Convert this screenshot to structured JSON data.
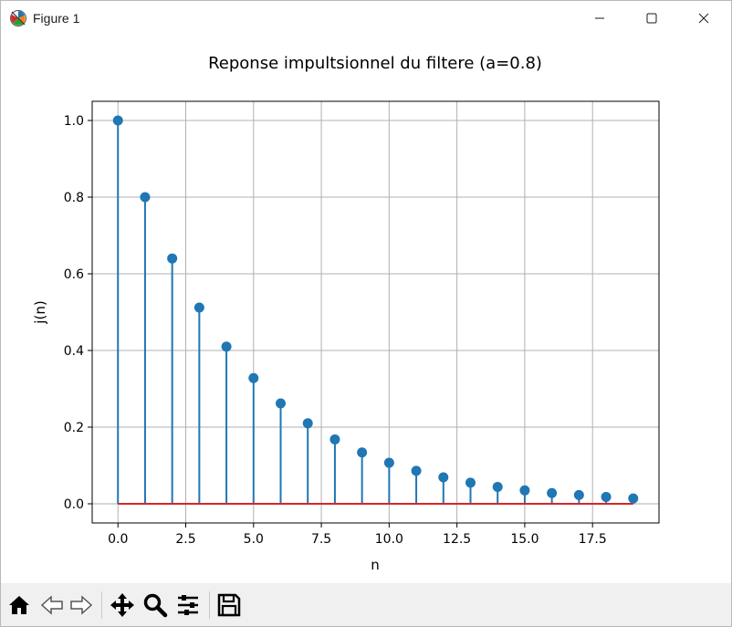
{
  "window": {
    "title": "Figure 1",
    "controls": [
      "minimize-icon",
      "maximize-icon",
      "close-icon"
    ]
  },
  "toolbar": {
    "icons": [
      "home-icon",
      "back-icon",
      "forward-icon",
      "pan-icon",
      "zoom-icon",
      "configure-subplots-icon",
      "save-icon"
    ]
  },
  "chart_data": {
    "type": "stem",
    "title": "Reponse impultsionnel du filtere (a=0.8)",
    "xlabel": "n",
    "ylabel": "j(n)",
    "x": [
      0,
      1,
      2,
      3,
      4,
      5,
      6,
      7,
      8,
      9,
      10,
      11,
      12,
      13,
      14,
      15,
      16,
      17,
      18,
      19
    ],
    "y": [
      1.0,
      0.8,
      0.64,
      0.512,
      0.41,
      0.328,
      0.262,
      0.21,
      0.168,
      0.134,
      0.107,
      0.086,
      0.069,
      0.055,
      0.044,
      0.035,
      0.028,
      0.023,
      0.018,
      0.014
    ],
    "xlim": [
      -0.95,
      19.95
    ],
    "ylim": [
      -0.05,
      1.05
    ],
    "xticks": [
      0.0,
      2.5,
      5.0,
      7.5,
      10.0,
      12.5,
      15.0,
      17.5
    ],
    "xtick_labels": [
      "0.0",
      "2.5",
      "5.0",
      "7.5",
      "10.0",
      "12.5",
      "15.0",
      "17.5"
    ],
    "yticks": [
      0.0,
      0.2,
      0.4,
      0.6,
      0.8,
      1.0
    ],
    "ytick_labels": [
      "0.0",
      "0.2",
      "0.4",
      "0.6",
      "0.8",
      "1.0"
    ],
    "grid": true,
    "baseline": 0,
    "colors": {
      "stem": "#1f77b4",
      "marker": "#1f77b4",
      "baseline": "#d62728",
      "grid": "#b0b0b0"
    }
  }
}
